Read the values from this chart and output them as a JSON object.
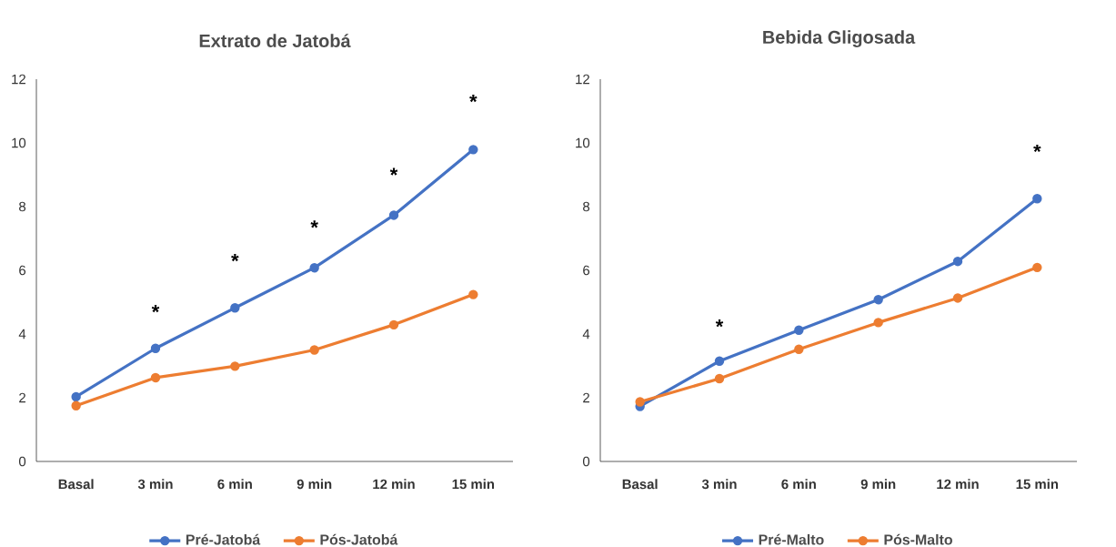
{
  "chart_data": [
    {
      "type": "line",
      "title": "Extrato de Jatobá",
      "categories": [
        "Basal",
        "3 min",
        "6 min",
        "9 min",
        "12 min",
        "15 min"
      ],
      "series": [
        {
          "name": "Pré-Jatobá",
          "color": "#4472c4",
          "values": [
            2.03,
            3.55,
            4.82,
            6.08,
            7.73,
            9.79
          ]
        },
        {
          "name": "Pós-Jatobá",
          "color": "#ed7d31",
          "values": [
            1.75,
            2.63,
            2.99,
            3.5,
            4.29,
            5.24
          ]
        }
      ],
      "ylim": [
        0,
        12
      ],
      "yticks": [
        0,
        2,
        4,
        6,
        8,
        10,
        12
      ],
      "grid": false,
      "legend": "bottom",
      "marker": "circle",
      "line_style": "solid",
      "annotations": [
        "*",
        "*",
        "*",
        "*",
        "*"
      ]
    },
    {
      "type": "line",
      "title": "Bebida Gligosada",
      "categories": [
        "Basal",
        "3 min",
        "6 min",
        "9 min",
        "12 min",
        "15 min"
      ],
      "series": [
        {
          "name": "Pré-Malto",
          "color": "#4472c4",
          "values": [
            1.73,
            3.15,
            4.12,
            5.08,
            6.28,
            8.25
          ]
        },
        {
          "name": "Pós-Malto",
          "color": "#ed7d31",
          "values": [
            1.87,
            2.6,
            3.52,
            4.36,
            5.13,
            6.09
          ]
        }
      ],
      "ylim": [
        0,
        12
      ],
      "yticks": [
        0,
        2,
        4,
        6,
        8,
        10,
        12
      ],
      "grid": false,
      "legend": "bottom",
      "marker": "circle",
      "line_style": "solid",
      "annotations": [
        "*",
        "*"
      ]
    }
  ]
}
